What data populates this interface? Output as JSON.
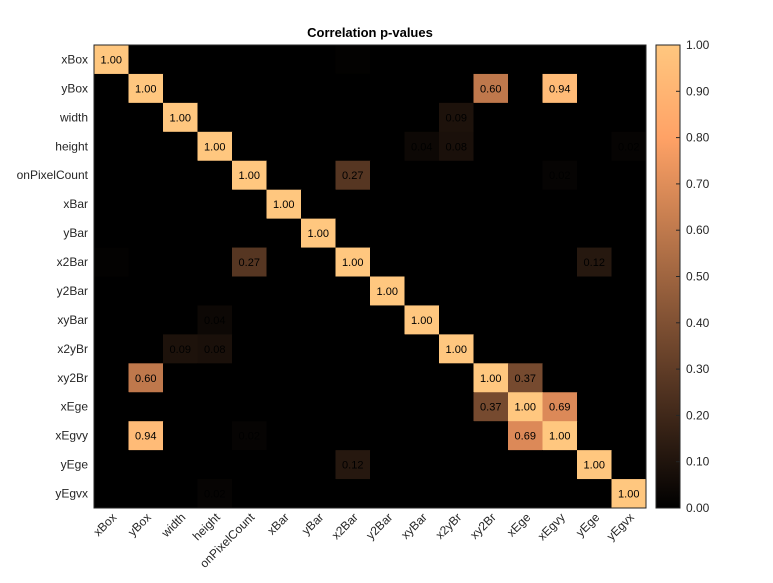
{
  "chart_data": {
    "type": "heatmap",
    "title": "Correlation p-values",
    "labels": [
      "xBox",
      "yBox",
      "width",
      "height",
      "onPixelCount",
      "xBar",
      "yBar",
      "x2Bar",
      "y2Bar",
      "xyBar",
      "x2yBr",
      "xy2Br",
      "xEge",
      "xEgvy",
      "yEge",
      "yEgvx"
    ],
    "matrix": [
      [
        1.0,
        0.0,
        0.0,
        0.0,
        0.0,
        0.0,
        0.0,
        0.01,
        0.0,
        0.0,
        0.0,
        0.0,
        0.0,
        0.0,
        0.0,
        0.0
      ],
      [
        0.0,
        1.0,
        0.0,
        0.0,
        0.0,
        0.0,
        0.0,
        0.0,
        0.0,
        0.0,
        0.0,
        0.6,
        0.0,
        0.94,
        0.0,
        0.0
      ],
      [
        0.0,
        0.0,
        1.0,
        0.0,
        0.0,
        0.0,
        0.0,
        0.0,
        0.0,
        0.0,
        0.09,
        0.0,
        0.0,
        0.0,
        0.0,
        0.0
      ],
      [
        0.0,
        0.0,
        0.0,
        1.0,
        0.0,
        0.0,
        0.0,
        0.0,
        0.0,
        0.04,
        0.08,
        0.0,
        0.0,
        0.0,
        0.0,
        0.02
      ],
      [
        0.0,
        0.0,
        0.0,
        0.0,
        1.0,
        0.0,
        0.0,
        0.27,
        0.0,
        0.0,
        0.0,
        0.0,
        0.0,
        0.02,
        0.0,
        0.0
      ],
      [
        0.0,
        0.0,
        0.0,
        0.0,
        0.0,
        1.0,
        0.0,
        0.0,
        0.0,
        0.0,
        0.0,
        0.0,
        0.0,
        0.0,
        0.0,
        0.0
      ],
      [
        0.0,
        0.0,
        0.0,
        0.0,
        0.0,
        0.0,
        1.0,
        0.0,
        0.0,
        0.0,
        0.0,
        0.0,
        0.0,
        0.0,
        0.0,
        0.0
      ],
      [
        0.01,
        0.0,
        0.0,
        0.0,
        0.27,
        0.0,
        0.0,
        1.0,
        0.0,
        0.0,
        0.0,
        0.0,
        0.0,
        0.0,
        0.12,
        0.0
      ],
      [
        0.0,
        0.0,
        0.0,
        0.0,
        0.0,
        0.0,
        0.0,
        0.0,
        1.0,
        0.0,
        0.0,
        0.0,
        0.0,
        0.0,
        0.0,
        0.0
      ],
      [
        0.0,
        0.0,
        0.0,
        0.04,
        0.0,
        0.0,
        0.0,
        0.0,
        0.0,
        1.0,
        0.0,
        0.0,
        0.0,
        0.0,
        0.0,
        0.0
      ],
      [
        0.0,
        0.0,
        0.09,
        0.08,
        0.0,
        0.0,
        0.0,
        0.0,
        0.0,
        0.0,
        1.0,
        0.0,
        0.0,
        0.0,
        0.0,
        0.0
      ],
      [
        0.0,
        0.6,
        0.0,
        0.0,
        0.0,
        0.0,
        0.0,
        0.0,
        0.0,
        0.0,
        0.0,
        1.0,
        0.37,
        0.0,
        0.0,
        0.0
      ],
      [
        0.0,
        0.0,
        0.0,
        0.0,
        0.0,
        0.0,
        0.0,
        0.0,
        0.0,
        0.0,
        0.0,
        0.37,
        1.0,
        0.69,
        0.0,
        0.0
      ],
      [
        0.0,
        0.94,
        0.0,
        0.0,
        0.02,
        0.0,
        0.0,
        0.0,
        0.0,
        0.0,
        0.0,
        0.0,
        0.69,
        1.0,
        0.0,
        0.0
      ],
      [
        0.0,
        0.0,
        0.0,
        0.0,
        0.0,
        0.0,
        0.0,
        0.12,
        0.0,
        0.0,
        0.0,
        0.0,
        0.0,
        0.0,
        1.0,
        0.0
      ],
      [
        0.0,
        0.0,
        0.0,
        0.02,
        0.0,
        0.0,
        0.0,
        0.0,
        0.0,
        0.0,
        0.0,
        0.0,
        0.0,
        0.0,
        0.0,
        1.0
      ]
    ],
    "colorbar": {
      "range": [
        0,
        1
      ],
      "ticks": [
        "0.00",
        "0.10",
        "0.20",
        "0.30",
        "0.40",
        "0.50",
        "0.60",
        "0.70",
        "0.80",
        "0.90",
        "1.00"
      ],
      "colormap": "copper",
      "low_color": "#000000",
      "high_color": "#FFC77F"
    },
    "grid": false,
    "legend": "colorbar-right"
  }
}
